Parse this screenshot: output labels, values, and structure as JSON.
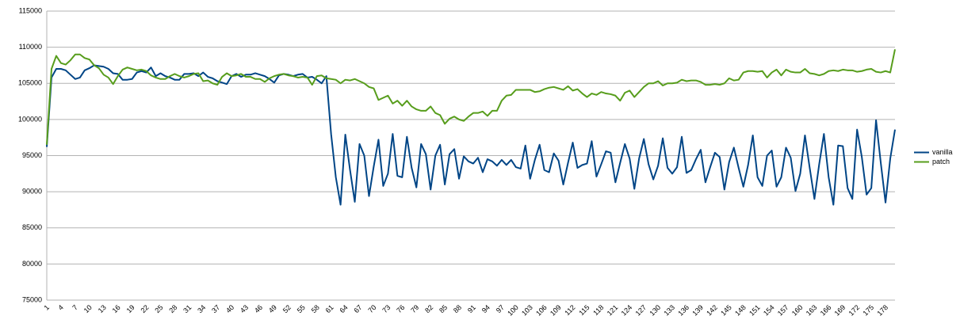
{
  "chart_data": {
    "type": "line",
    "categories": [
      1,
      null,
      null,
      4,
      null,
      null,
      7,
      null,
      null,
      10,
      null,
      null,
      13,
      null,
      null,
      16,
      null,
      null,
      19,
      null,
      null,
      22,
      null,
      null,
      25,
      null,
      null,
      28,
      null,
      null,
      31,
      null,
      null,
      34,
      null,
      null,
      37,
      null,
      null,
      40,
      null,
      null,
      43,
      null,
      null,
      46,
      null,
      null,
      49,
      null,
      null,
      52,
      null,
      null,
      55,
      null,
      null,
      58,
      null,
      null,
      61,
      null,
      null,
      64,
      null,
      null,
      67,
      null,
      null,
      70,
      null,
      null,
      73,
      null,
      null,
      76,
      null,
      null,
      79,
      null,
      null,
      82,
      null,
      null,
      85,
      null,
      null,
      88,
      null,
      null,
      91,
      null,
      null,
      94,
      null,
      null,
      97,
      null,
      null,
      100,
      null,
      null,
      103,
      null,
      null,
      106,
      null,
      null,
      109,
      null,
      null,
      112,
      null,
      null,
      115,
      null,
      null,
      118,
      null,
      null,
      121,
      null,
      null,
      124,
      null,
      null,
      127,
      null,
      null,
      130,
      null,
      null,
      133,
      null,
      null,
      136,
      null,
      null,
      139,
      null,
      null,
      142,
      null,
      null,
      145,
      null,
      null,
      148,
      null,
      null,
      151,
      null,
      null,
      154,
      null,
      null,
      157,
      null,
      null,
      160,
      null,
      null,
      163,
      null,
      null,
      166,
      null,
      null,
      169,
      null,
      null,
      172,
      null,
      null,
      175,
      null,
      null,
      178,
      null,
      null
    ],
    "series": [
      {
        "name": "vanilla",
        "color": "#004586",
        "values": [
          96200,
          105800,
          107000,
          107000,
          106800,
          106200,
          105600,
          105800,
          106800,
          107100,
          107500,
          107400,
          107300,
          107000,
          106400,
          106300,
          105500,
          105500,
          105600,
          106500,
          106700,
          106500,
          107200,
          106000,
          106400,
          106000,
          105800,
          105500,
          105500,
          106300,
          106300,
          106400,
          106000,
          106500,
          105900,
          105700,
          105300,
          105100,
          104900,
          106000,
          106300,
          105900,
          106200,
          106200,
          106400,
          106200,
          106000,
          105600,
          105100,
          106100,
          106300,
          106200,
          106000,
          106200,
          106300,
          105800,
          105900,
          105500,
          105000,
          106000,
          98000,
          92000,
          88200,
          97900,
          93000,
          88600,
          96600,
          95000,
          89400,
          93500,
          97200,
          90800,
          92500,
          98000,
          92200,
          92000,
          97600,
          93300,
          90600,
          96600,
          95200,
          90300,
          95000,
          96500,
          91000,
          95200,
          95900,
          91800,
          94900,
          94200,
          93900,
          94700,
          92700,
          94500,
          94200,
          93600,
          94400,
          93700,
          94400,
          93400,
          93200,
          96400,
          91800,
          94400,
          96500,
          93000,
          92700,
          95300,
          94300,
          91000,
          94000,
          96800,
          93300,
          93700,
          93900,
          97000,
          92100,
          93800,
          95600,
          95400,
          91300,
          94000,
          96600,
          94600,
          90400,
          94600,
          97300,
          93800,
          91700,
          93600,
          97400,
          93300,
          92500,
          93400,
          97600,
          92600,
          93000,
          94500,
          95800,
          91300,
          93400,
          95400,
          94800,
          90300,
          94100,
          96100,
          93300,
          90700,
          93700,
          97800,
          92000,
          90800,
          95000,
          95700,
          90700,
          92000,
          96100,
          94700,
          90100,
          92500,
          97800,
          93300,
          89000,
          93800,
          98000,
          92000,
          88200,
          96400,
          96300,
          90500,
          89000,
          98600,
          94800,
          89600,
          90500,
          99900,
          94000,
          88500,
          94600,
          98600
        ]
      },
      {
        "name": "patch",
        "color": "#579d1c",
        "values": [
          96500,
          107000,
          108800,
          107800,
          107600,
          108200,
          109000,
          109000,
          108500,
          108300,
          107500,
          107100,
          106200,
          105800,
          104900,
          106000,
          106900,
          107200,
          107000,
          106800,
          106900,
          106700,
          106100,
          105800,
          105600,
          105600,
          106000,
          106300,
          106000,
          105800,
          106000,
          106300,
          106400,
          105300,
          105400,
          105000,
          104800,
          105900,
          106400,
          106000,
          106100,
          106300,
          105900,
          105900,
          105600,
          105600,
          105200,
          105700,
          106000,
          106200,
          106300,
          106100,
          106000,
          105800,
          105900,
          105800,
          104800,
          106000,
          106100,
          105700,
          105600,
          105500,
          105000,
          105500,
          105400,
          105600,
          105300,
          105000,
          104500,
          104300,
          102700,
          103000,
          103300,
          102200,
          102600,
          101900,
          102600,
          101800,
          101400,
          101200,
          101200,
          101800,
          100900,
          100600,
          99400,
          100100,
          100400,
          100000,
          99800,
          100400,
          100900,
          100900,
          101100,
          100500,
          101200,
          101200,
          102600,
          103300,
          103400,
          104100,
          104100,
          104100,
          104100,
          103800,
          103900,
          104200,
          104400,
          104500,
          104300,
          104100,
          104600,
          104000,
          104200,
          103600,
          103100,
          103600,
          103400,
          103800,
          103600,
          103500,
          103300,
          102600,
          103700,
          104000,
          103100,
          103800,
          104500,
          105000,
          105000,
          105300,
          104700,
          105000,
          105000,
          105100,
          105500,
          105300,
          105400,
          105400,
          105200,
          104800,
          104800,
          104900,
          104800,
          105000,
          105700,
          105400,
          105500,
          106500,
          106700,
          106700,
          106600,
          106700,
          105800,
          106500,
          106900,
          106100,
          106900,
          106600,
          106500,
          106500,
          107000,
          106400,
          106300,
          106100,
          106300,
          106700,
          106800,
          106700,
          106900,
          106800,
          106800,
          106600,
          106700,
          106900,
          107000,
          106600,
          106500,
          106700,
          106500,
          109700
        ]
      }
    ],
    "ylim": [
      75000,
      115000
    ],
    "yticks": [
      75000,
      80000,
      85000,
      90000,
      95000,
      100000,
      105000,
      110000,
      115000
    ],
    "grid": true,
    "legend": "right"
  }
}
